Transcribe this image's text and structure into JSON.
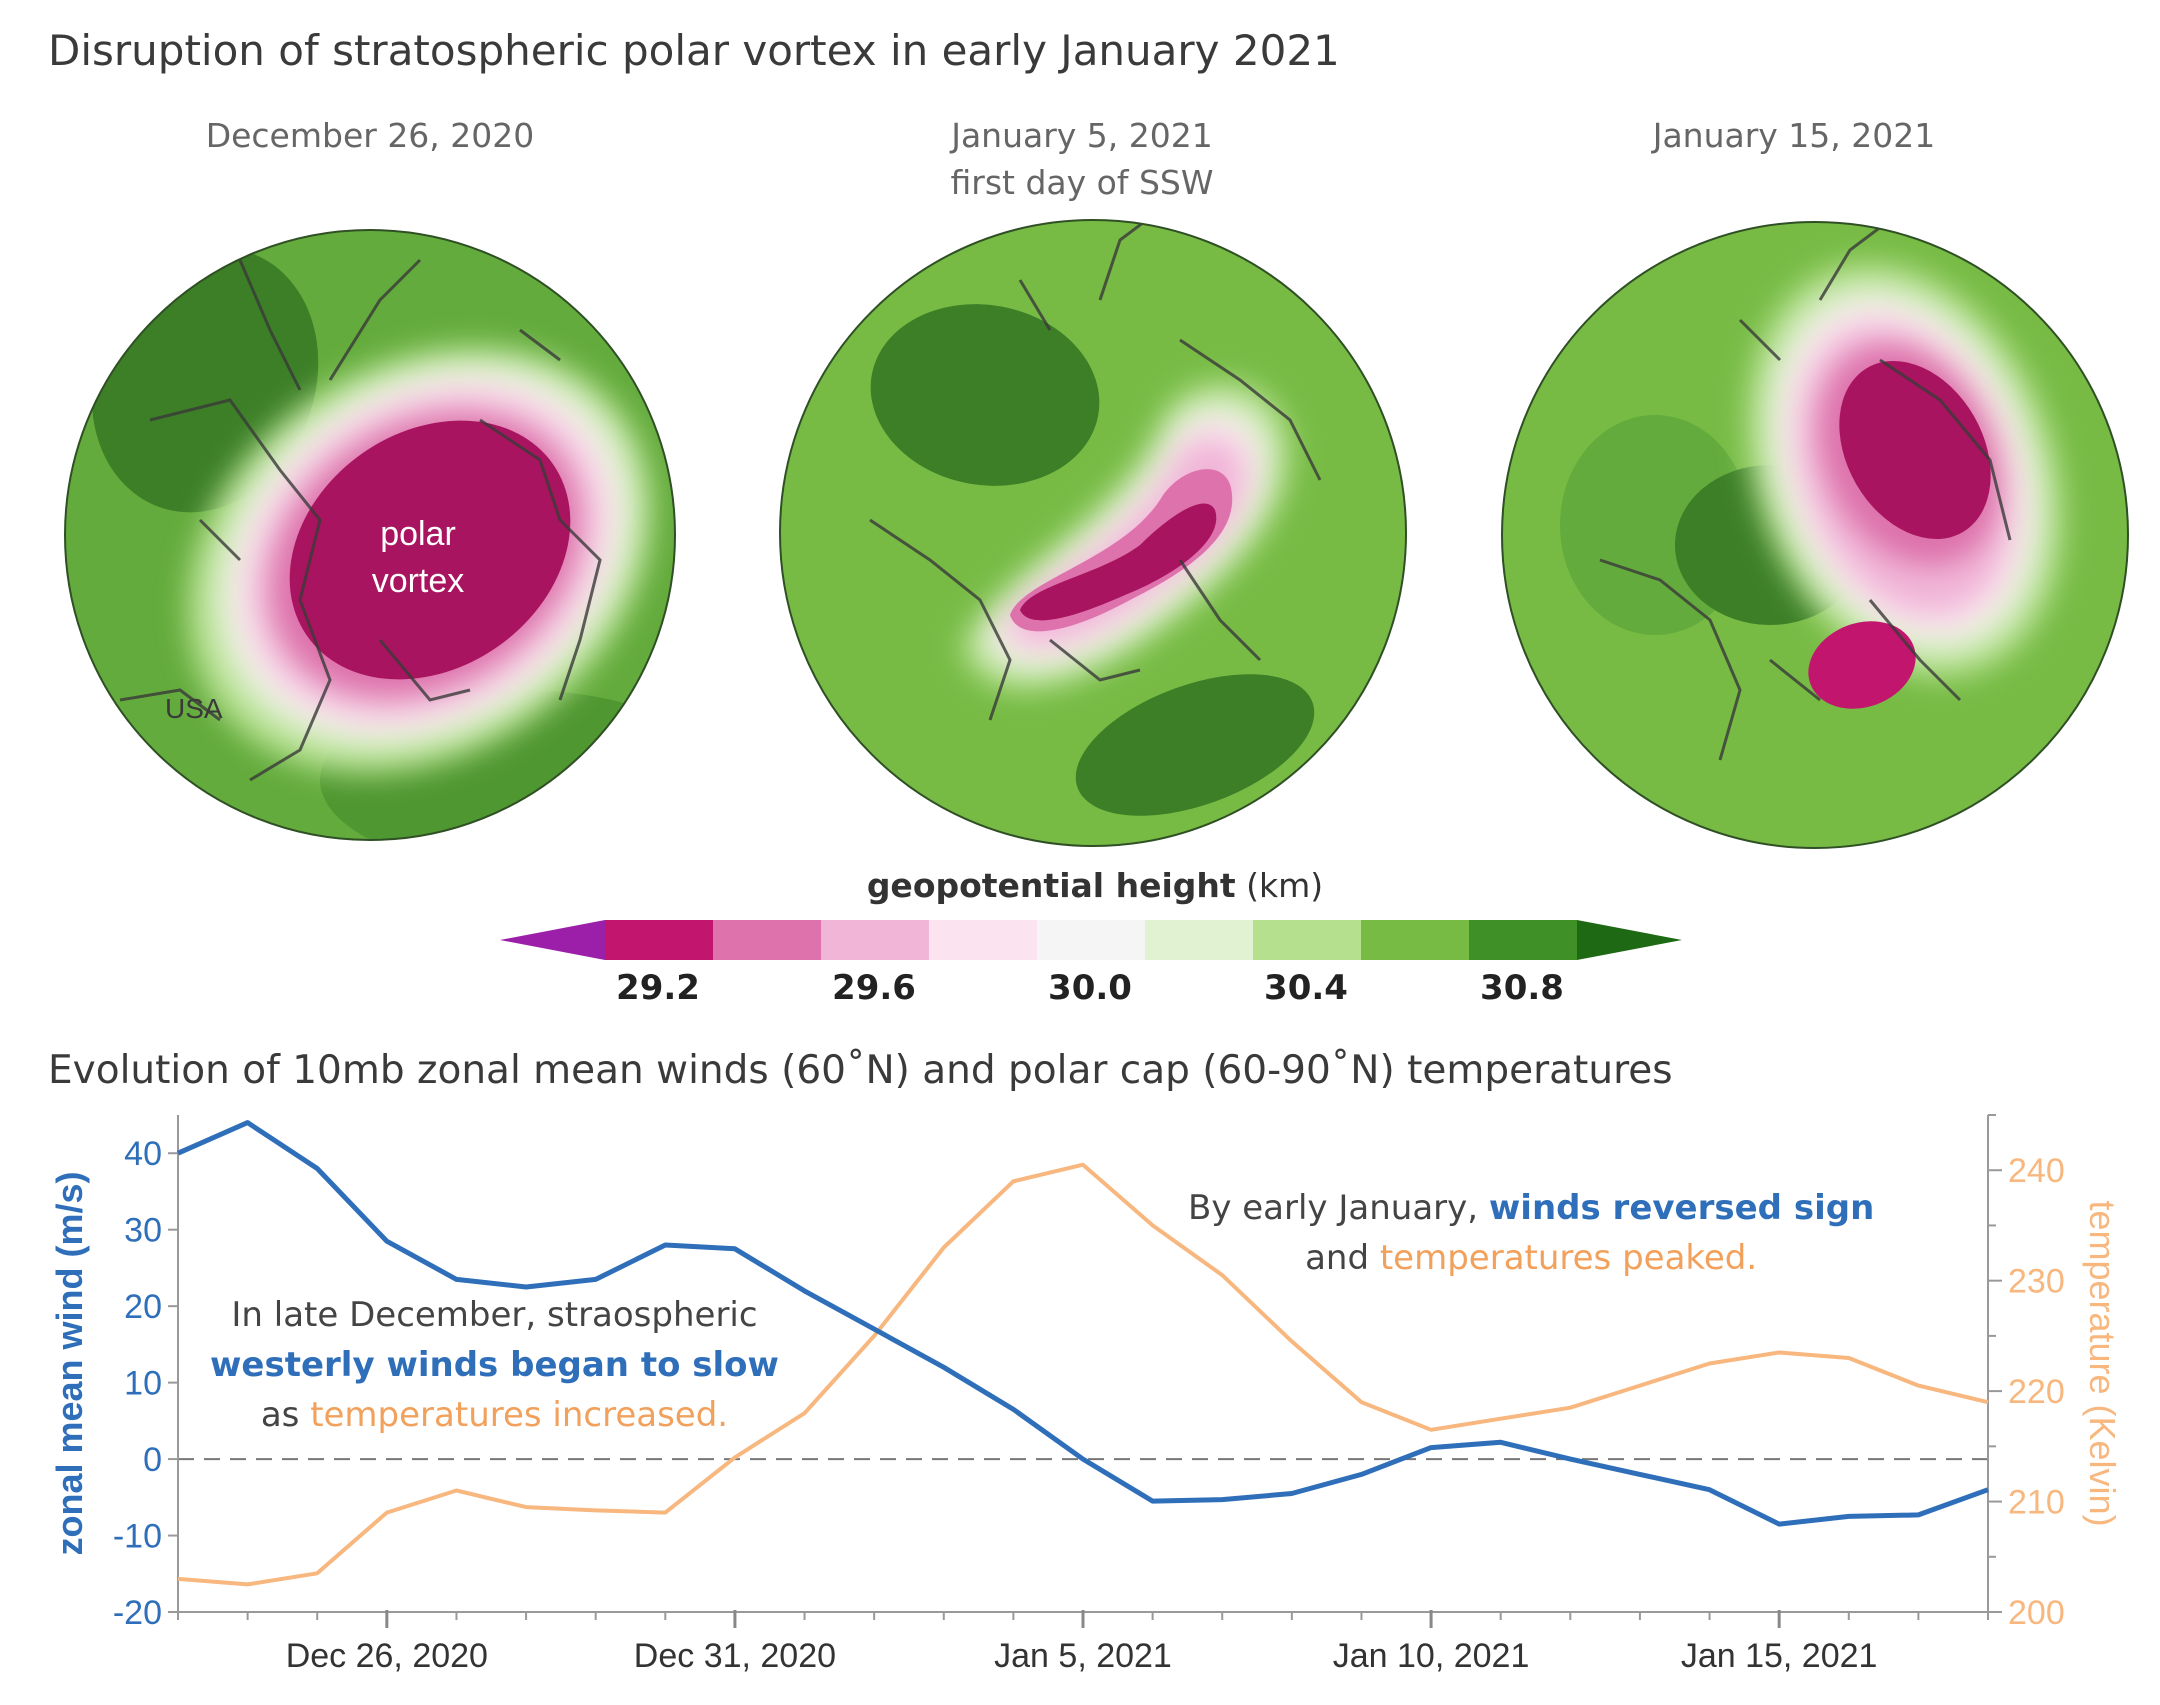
{
  "title": "Disruption of stratospheric polar vortex in early January 2021",
  "maps": [
    {
      "date": "December 26, 2020",
      "note": "",
      "labels": [
        "polar",
        "vortex"
      ],
      "country_label": "USA"
    },
    {
      "date": "January 5, 2021",
      "note": "first day of SSW"
    },
    {
      "date": "January 15, 2021",
      "note": ""
    }
  ],
  "colorbar": {
    "title_bold": "geopotential height",
    "title_unit": "(km)",
    "colors": [
      "#9b1fa8",
      "#c2166e",
      "#de72ac",
      "#f1b5d8",
      "#fbe3f0",
      "#f5f5f5",
      "#e1f2d2",
      "#b5e08e",
      "#77bb45",
      "#3f9027",
      "#1e6a14"
    ],
    "ticks": [
      "29.2",
      "29.6",
      "30.0",
      "30.4",
      "30.8"
    ]
  },
  "subtitle": "Evolution of 10mb zonal mean winds (60˚N) and polar cap (60-90˚N) temperatures",
  "annotations": {
    "a1_line1": "In late December, straospheric",
    "a1_line2": "westerly winds began to slow",
    "a1_line3a": "as ",
    "a1_line3b": "temperatures increased.",
    "a2_line1a": "By early January, ",
    "a2_line1b": "winds reversed sign",
    "a2_line2a": "and ",
    "a2_line2b": "temperatures peaked."
  },
  "chart_data": {
    "type": "line",
    "x_tick_labels": [
      "Dec 26, 2020",
      "Dec 31, 2020",
      "Jan 5, 2021",
      "Jan 10, 2021",
      "Jan 15, 2021"
    ],
    "x": [
      "2020-12-23",
      "2020-12-24",
      "2020-12-25",
      "2020-12-26",
      "2020-12-27",
      "2020-12-28",
      "2020-12-29",
      "2020-12-30",
      "2020-12-31",
      "2021-01-01",
      "2021-01-02",
      "2021-01-03",
      "2021-01-04",
      "2021-01-05",
      "2021-01-06",
      "2021-01-07",
      "2021-01-08",
      "2021-01-09",
      "2021-01-10",
      "2021-01-11",
      "2021-01-12",
      "2021-01-13",
      "2021-01-14",
      "2021-01-15",
      "2021-01-16",
      "2021-01-17",
      "2021-01-18"
    ],
    "series": [
      {
        "name": "zonal mean wind",
        "axis": "left",
        "color": "#2f6fba",
        "values": [
          40,
          44,
          38,
          28.5,
          23.5,
          22.5,
          23.5,
          28,
          27.5,
          22,
          17,
          12,
          6.5,
          0,
          -5.5,
          -5.3,
          -4.5,
          -2,
          1.5,
          2.2,
          0,
          -2,
          -4,
          -8.5,
          -7.5,
          -7.3,
          -4
        ]
      },
      {
        "name": "temperature",
        "axis": "right",
        "color": "#f7b77e",
        "values": [
          203,
          202.5,
          203.5,
          209,
          211,
          209.5,
          209.2,
          209,
          214,
          218,
          225,
          233,
          239,
          240.5,
          235,
          230.5,
          224.5,
          219,
          216.5,
          217.5,
          218.5,
          220.5,
          222.5,
          223.5,
          223,
          220.5,
          219
        ]
      }
    ],
    "ylabel_left": "zonal mean wind (m/s)",
    "ylabel_right": "temperature (Kelvin)",
    "ylim_left": [
      -20,
      45
    ],
    "ylim_right": [
      200,
      245
    ],
    "yticks_left": [
      40,
      30,
      20,
      10,
      0,
      -10,
      -20
    ],
    "yticks_right": [
      240,
      230,
      220,
      210,
      200
    ],
    "zero_line": "dashed"
  }
}
